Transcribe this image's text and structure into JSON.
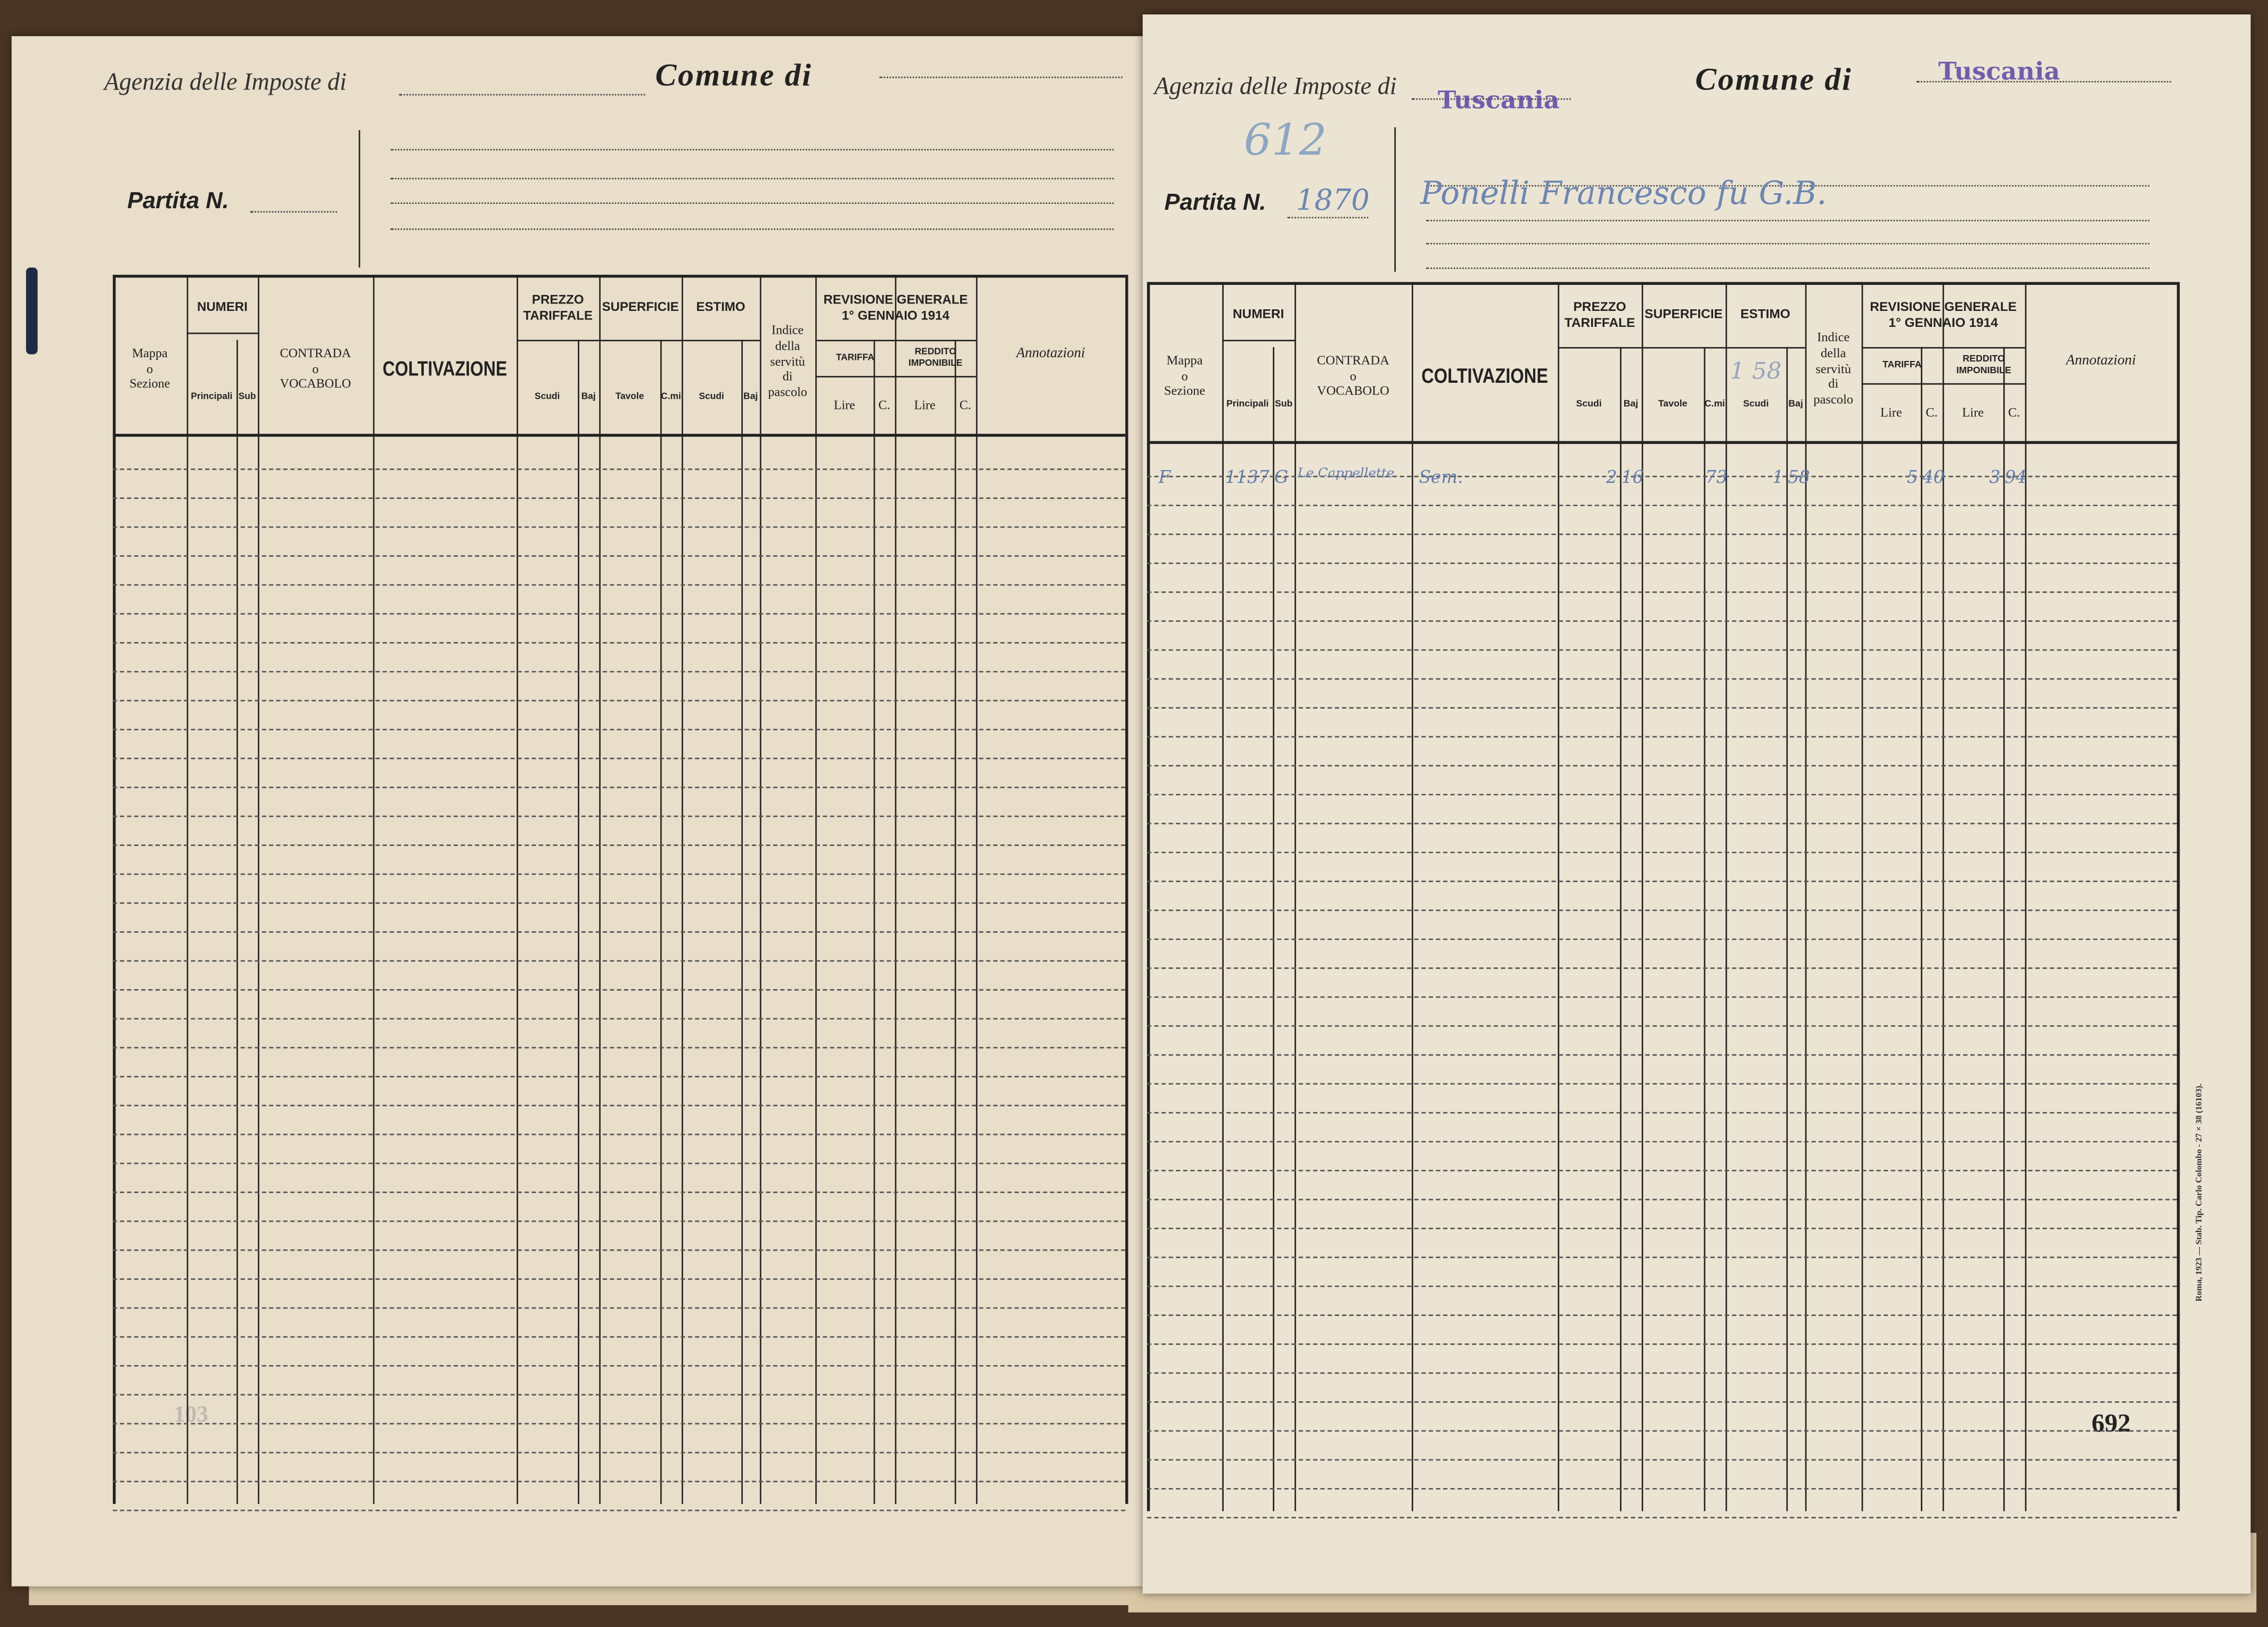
{
  "document": {
    "header_labels": {
      "agenzia": "Agenzia delle Imposte di",
      "comune": "Comune di",
      "partita": "Partita N."
    },
    "table_headers": {
      "mappa": [
        "Mappa",
        "o",
        "Sezione"
      ],
      "numeri": "NUMERI",
      "principali": "Principali",
      "sub": "Sub",
      "contrada": [
        "CONTRADA",
        "o",
        "VOCABOLO"
      ],
      "coltivazione": "COLTIVAZIONE",
      "prezzo": [
        "PREZZO",
        "TARIFFALE"
      ],
      "superficie": "SUPERFICIE",
      "estimo": "ESTIMO",
      "scudi": "Scudi",
      "baj": "Baj",
      "tavole": "Tavole",
      "cmi": "C.mi",
      "indice": [
        "Indice",
        "della",
        "servitù",
        "di",
        "pascolo"
      ],
      "revisione": [
        "REVISIONE GENERALE",
        "1° GENNAIO 1914"
      ],
      "tariffa": "TARIFFA",
      "reddito": "REDDITO IMPONIBILE",
      "lire": "Lire",
      "c": "C.",
      "annotazioni": "Annotazioni"
    },
    "left_page": {
      "agenzia_value": "",
      "comune_value": "",
      "partita_value": "",
      "ghost_number": "103"
    },
    "right_page": {
      "agenzia_stamp": "Tuscania",
      "comune_stamp": "Tuscania",
      "handwritten_number": "612",
      "partita_value": "1870",
      "owner_name": "Ponelli Francesco fu G.B.",
      "estimo_note": "1 58",
      "rows": [
        {
          "mappa": "F",
          "principali": "1137",
          "sub": "G",
          "contrada": "Le Cappellette",
          "coltivazione": "Sem.",
          "prezzo_scudi": "2",
          "prezzo_baj": "16",
          "superficie_tavole": "",
          "superficie_cmi": "73",
          "estimo_scudi": "1",
          "estimo_baj": "58",
          "indice": "",
          "tariffa_lire": "5",
          "tariffa_c": "40",
          "reddito_lire": "3",
          "reddito_c": "94",
          "annotazioni": ""
        }
      ],
      "page_number": "692",
      "printer_note": "Roma, 1923 — Stab. Tip. Carlo Colombo - 27 × 38 (16103)."
    },
    "colors": {
      "paper": "#ece4d2",
      "ink": "#222222",
      "stamp": "#5a47a8",
      "handwriting": "#6a86b4"
    }
  }
}
